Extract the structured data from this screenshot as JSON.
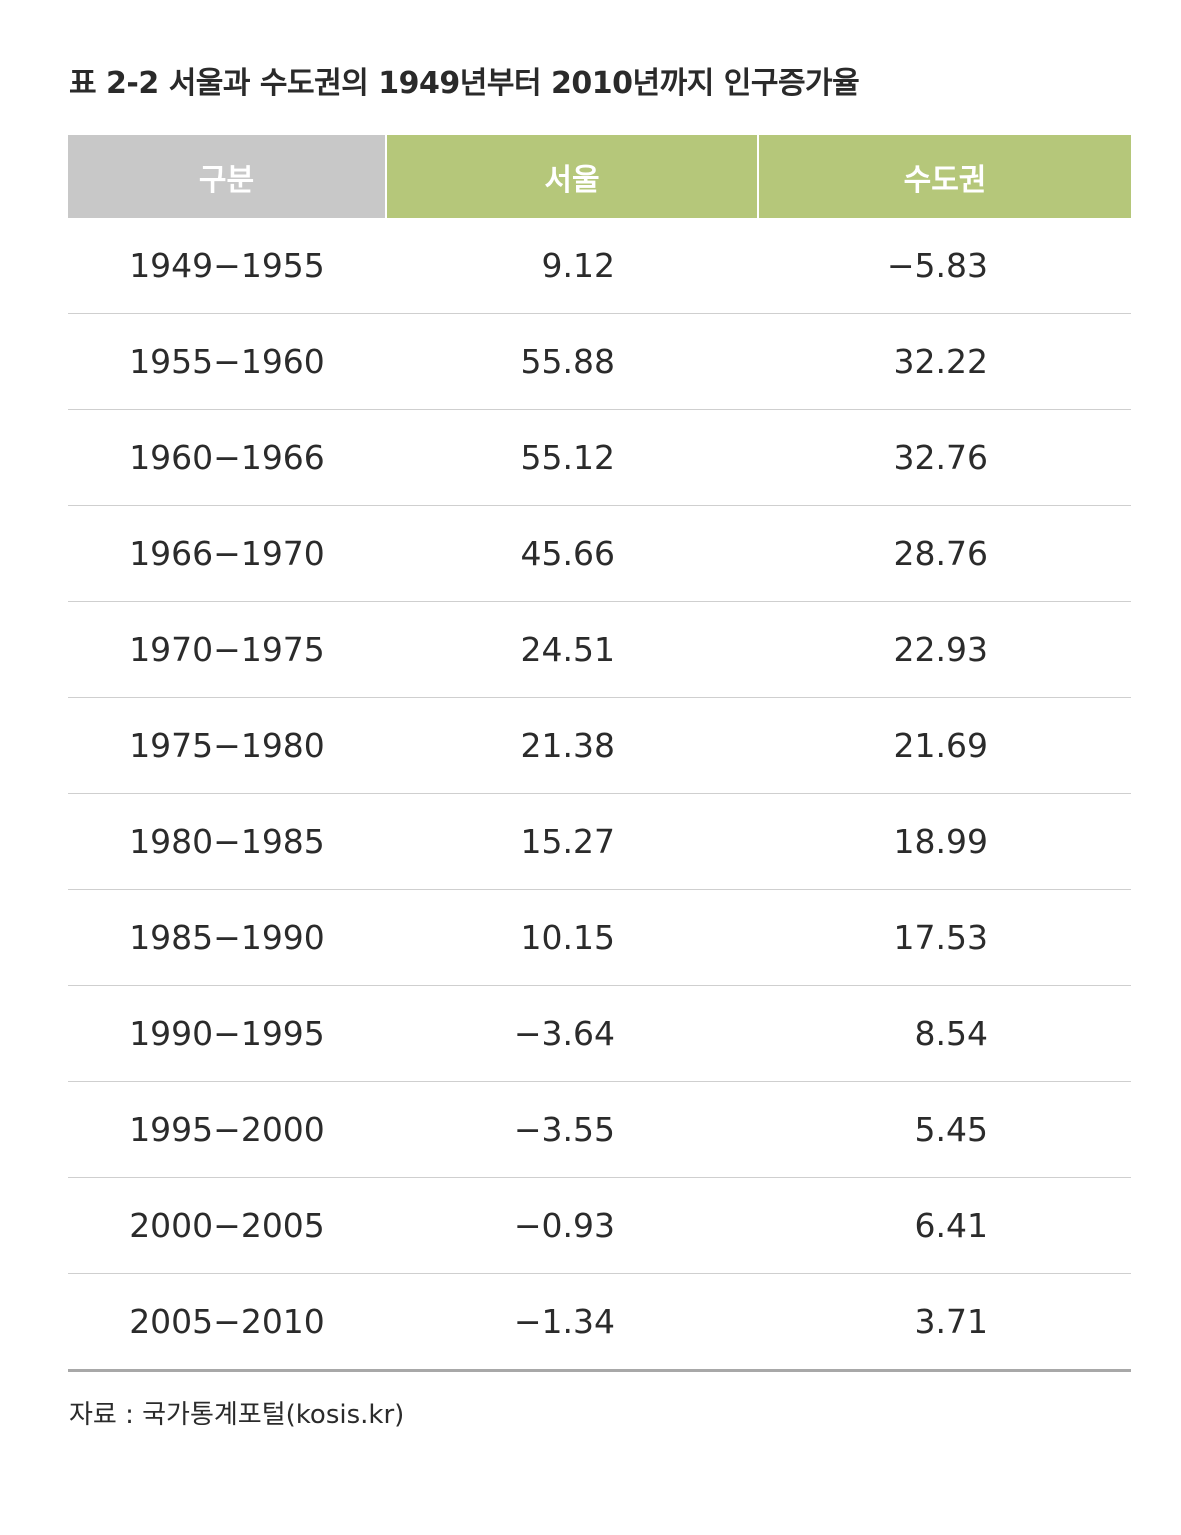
{
  "title": "표 2-2 서울과 수도권의 1949년부터 2010년까지 인구증가율",
  "table": {
    "headers": [
      "구분",
      "서울",
      "수도권"
    ],
    "header_colors": {
      "first": "#c8c8c8",
      "rest": "#b5c77a"
    },
    "rows": [
      {
        "period": "1949−1955",
        "seoul": "9.12",
        "metro": "−5.83"
      },
      {
        "period": "1955−1960",
        "seoul": "55.88",
        "metro": "32.22"
      },
      {
        "period": "1960−1966",
        "seoul": "55.12",
        "metro": "32.76"
      },
      {
        "period": "1966−1970",
        "seoul": "45.66",
        "metro": "28.76"
      },
      {
        "period": "1970−1975",
        "seoul": "24.51",
        "metro": "22.93"
      },
      {
        "period": "1975−1980",
        "seoul": "21.38",
        "metro": "21.69"
      },
      {
        "period": "1980−1985",
        "seoul": "15.27",
        "metro": "18.99"
      },
      {
        "period": "1985−1990",
        "seoul": "10.15",
        "metro": "17.53"
      },
      {
        "period": "1990−1995",
        "seoul": "−3.64",
        "metro": "8.54"
      },
      {
        "period": "1995−2000",
        "seoul": "−3.55",
        "metro": "5.45"
      },
      {
        "period": "2000−2005",
        "seoul": "−0.93",
        "metro": "6.41"
      },
      {
        "period": "2005−2010",
        "seoul": "−1.34",
        "metro": "3.71"
      }
    ]
  },
  "source": "자료 : 국가통계포털(kosis.kr)"
}
